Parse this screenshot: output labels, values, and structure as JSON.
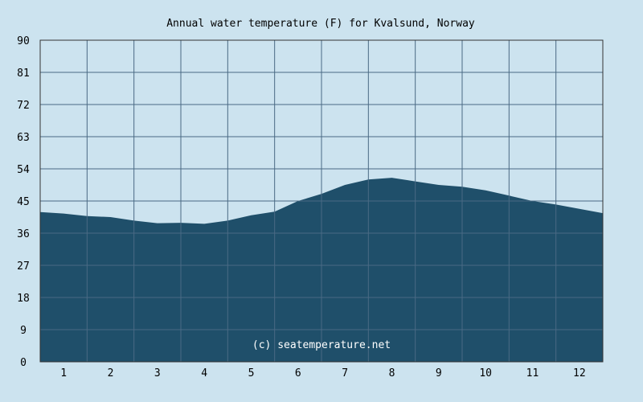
{
  "chart_data": {
    "type": "area",
    "title": "Annual water temperature (F) for Kvalsund, Norway",
    "xlabel": "",
    "ylabel": "",
    "x_ticks": [
      "1",
      "2",
      "3",
      "4",
      "5",
      "6",
      "7",
      "8",
      "9",
      "10",
      "11",
      "12"
    ],
    "y_ticks": [
      "0",
      "9",
      "18",
      "27",
      "36",
      "45",
      "54",
      "63",
      "72",
      "81",
      "90"
    ],
    "xlim": [
      0.5,
      12.5
    ],
    "ylim": [
      0,
      90
    ],
    "grid": true,
    "watermark": "(c) seatemperature.net",
    "series": [
      {
        "x": [
          0.5,
          1.0,
          1.5,
          2.0,
          2.5,
          3.0,
          3.5,
          4.0,
          4.5,
          5.0,
          5.5,
          6.0,
          6.5,
          7.0,
          7.5,
          8.0,
          8.5,
          9.0,
          9.5,
          10.0,
          10.5,
          11.0,
          11.5,
          12.0,
          12.5
        ],
        "y": [
          41.9,
          41.5,
          40.8,
          40.5,
          39.5,
          38.8,
          38.9,
          38.6,
          39.5,
          41.0,
          42.0,
          45.0,
          47.0,
          49.5,
          51.0,
          51.5,
          50.5,
          49.5,
          49.0,
          48.0,
          46.5,
          45.0,
          44.0,
          42.8,
          41.6
        ]
      }
    ],
    "colors": {
      "background": "#cce3ef",
      "fill": "#1f4f6a",
      "grid": "#4a6a84",
      "axis": "#333333"
    }
  }
}
